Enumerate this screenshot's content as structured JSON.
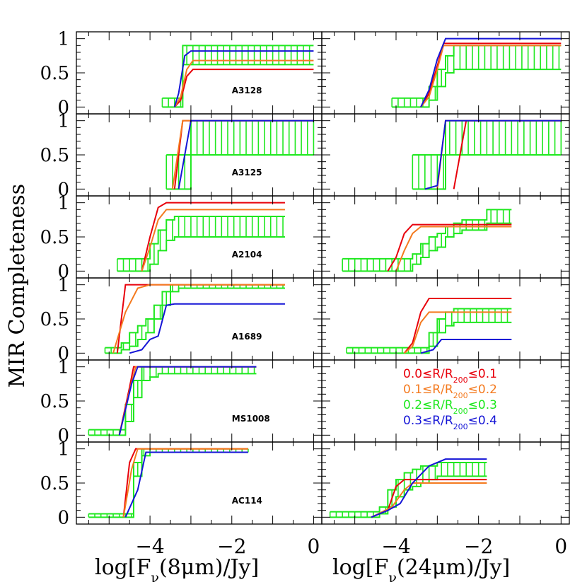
{
  "chart_data": {
    "type": "line",
    "ylabel": "MIR Completeness",
    "xlabel_left": {
      "main": "log[F",
      "sub": "ν",
      "rest": "(8μm)/Jy]"
    },
    "xlabel_right": {
      "main": "log[F",
      "sub": "ν",
      "rest": "(24μm)/Jy]"
    },
    "xlim": [
      -5.8,
      0.2
    ],
    "ylim": [
      -0.1,
      1.1
    ],
    "xticks": [
      "−4",
      "−2",
      "0"
    ],
    "xtick_values": [
      -4,
      -2,
      0
    ],
    "yticks": [
      "0",
      "0.5",
      "1"
    ],
    "ytick_values": [
      0,
      0.5,
      1
    ],
    "legend": {
      "position": "inside row 5 right panel",
      "entries": [
        {
          "name_pre": "0.0≤R/R",
          "name_sub": "200",
          "name_post": "≤0.1",
          "color": "#e8000b"
        },
        {
          "name_pre": "0.1≤R/R",
          "name_sub": "200",
          "name_post": "≤0.2",
          "color": "#f47a1f"
        },
        {
          "name_pre": "0.2≤R/R",
          "name_sub": "200",
          "name_post": "≤0.3",
          "color": "#1fe81f"
        },
        {
          "name_pre": "0.3≤R/R",
          "name_sub": "200",
          "name_post": "≤0.4",
          "color": "#1515d6"
        }
      ]
    },
    "colors": {
      "red": "#e8000b",
      "orange": "#f47a1f",
      "green": "#1fe81f",
      "blue": "#1515d6"
    },
    "rows": [
      {
        "cluster": "A3128",
        "left": {
          "green_band": {
            "x": [
              -3.7,
              -3.4,
              -3.2,
              -3.0,
              0.0
            ],
            "lo": [
              0.0,
              0.0,
              0.62,
              0.62,
              0.62
            ],
            "hi": [
              0.13,
              0.13,
              0.9,
              0.9,
              0.9
            ]
          },
          "red": [
            [
              -3.4,
              0
            ],
            [
              -3.25,
              0.1
            ],
            [
              -3.1,
              0.45
            ],
            [
              -2.95,
              0.55
            ],
            [
              0.0,
              0.55
            ]
          ],
          "orange": [
            [
              -3.4,
              0
            ],
            [
              -3.25,
              0.15
            ],
            [
              -3.1,
              0.55
            ],
            [
              -2.95,
              0.68
            ],
            [
              0.0,
              0.68
            ]
          ],
          "blue": [
            [
              -3.4,
              0
            ],
            [
              -3.3,
              0.2
            ],
            [
              -3.15,
              0.75
            ],
            [
              -3.0,
              0.82
            ],
            [
              0.0,
              0.82
            ]
          ]
        },
        "right": {
          "green_band": {
            "x": [
              -4.1,
              -3.4,
              -3.2,
              -3.0,
              -2.8,
              -2.6,
              -2.4,
              -2.2,
              0.0
            ],
            "lo": [
              0.0,
              0.0,
              0.1,
              0.3,
              0.5,
              0.55,
              0.55,
              0.55,
              0.55
            ],
            "hi": [
              0.13,
              0.13,
              0.3,
              0.55,
              0.75,
              0.9,
              0.9,
              0.9,
              0.9
            ]
          },
          "red": [
            [
              -3.4,
              0
            ],
            [
              -3.2,
              0.2
            ],
            [
              -3.0,
              0.6
            ],
            [
              -2.85,
              0.93
            ],
            [
              0.0,
              0.93
            ]
          ],
          "orange": [
            [
              -3.4,
              0
            ],
            [
              -3.2,
              0.15
            ],
            [
              -3.0,
              0.55
            ],
            [
              -2.85,
              0.9
            ],
            [
              0.0,
              0.9
            ]
          ],
          "blue": [
            [
              -3.4,
              0
            ],
            [
              -3.2,
              0.25
            ],
            [
              -3.0,
              0.7
            ],
            [
              -2.8,
              1.0
            ],
            [
              0.0,
              1.0
            ]
          ]
        }
      },
      {
        "cluster": "A3125",
        "left": {
          "green_band": {
            "x": [
              -3.6,
              -3.2,
              -3.0,
              0.0
            ],
            "lo": [
              0.0,
              0.0,
              0.5,
              0.5
            ],
            "hi": [
              0.5,
              0.5,
              1.0,
              1.0
            ]
          },
          "red": [
            [
              -3.4,
              0
            ],
            [
              -3.2,
              1.0
            ],
            [
              0.0,
              1.0
            ]
          ],
          "orange": [
            [
              -3.45,
              0
            ],
            [
              -3.2,
              1.0
            ],
            [
              0.0,
              1.0
            ]
          ],
          "blue": [
            [
              -3.3,
              0
            ],
            [
              -3.0,
              1.0
            ],
            [
              0.0,
              1.0
            ]
          ]
        },
        "right": {
          "green_band": {
            "x": [
              -3.6,
              -3.0,
              -2.8,
              -2.6,
              0.0
            ],
            "lo": [
              0.0,
              0.0,
              0.5,
              0.5,
              0.5
            ],
            "hi": [
              0.5,
              0.5,
              1.0,
              1.0,
              1.0
            ]
          },
          "red": [
            [
              -2.6,
              0
            ],
            [
              -2.3,
              1.0
            ],
            [
              0.0,
              1.0
            ]
          ],
          "orange": [
            [
              -3.0,
              0
            ],
            [
              -2.8,
              1.0
            ],
            [
              0.0,
              1.0
            ]
          ],
          "blue": [
            [
              -3.3,
              0
            ],
            [
              -3.0,
              0.05
            ],
            [
              -2.8,
              1.0
            ],
            [
              0.0,
              1.0
            ]
          ]
        }
      },
      {
        "cluster": "A2104",
        "left": {
          "green_band": {
            "x": [
              -4.8,
              -4.2,
              -4.0,
              -3.8,
              -3.6,
              -3.4,
              -0.7
            ],
            "lo": [
              0.0,
              0.0,
              0.1,
              0.3,
              0.45,
              0.5,
              0.5
            ],
            "hi": [
              0.18,
              0.18,
              0.4,
              0.6,
              0.75,
              0.8,
              0.8
            ]
          },
          "red": [
            [
              -4.2,
              0
            ],
            [
              -4.0,
              0.5
            ],
            [
              -3.8,
              0.93
            ],
            [
              -3.6,
              1.0
            ],
            [
              -0.7,
              1.0
            ]
          ],
          "orange": [
            [
              -4.2,
              0
            ],
            [
              -4.0,
              0.35
            ],
            [
              -3.8,
              0.75
            ],
            [
              -3.6,
              0.9
            ],
            [
              -0.7,
              0.9
            ]
          ],
          "blue": []
        },
        "right": {
          "green_band": {
            "x": [
              -5.3,
              -3.7,
              -3.6,
              -3.4,
              -3.2,
              -3.0,
              -2.8,
              -2.6,
              -2.4,
              -2.2,
              -2.0,
              -1.8,
              -1.6,
              -1.2
            ],
            "lo": [
              0.0,
              0.0,
              0.1,
              0.2,
              0.3,
              0.35,
              0.5,
              0.55,
              0.6,
              0.6,
              0.6,
              0.7,
              0.7,
              0.7
            ],
            "hi": [
              0.18,
              0.18,
              0.25,
              0.4,
              0.5,
              0.55,
              0.65,
              0.7,
              0.75,
              0.75,
              0.75,
              0.9,
              0.9,
              0.9
            ]
          },
          "red": [
            [
              -4.2,
              0
            ],
            [
              -4.0,
              0.2
            ],
            [
              -3.8,
              0.55
            ],
            [
              -3.6,
              0.68
            ],
            [
              -1.2,
              0.68
            ]
          ],
          "orange": [
            [
              -4.0,
              0
            ],
            [
              -3.8,
              0.3
            ],
            [
              -3.6,
              0.55
            ],
            [
              -3.4,
              0.65
            ],
            [
              -1.2,
              0.65
            ]
          ],
          "blue": []
        }
      },
      {
        "cluster": "A1689",
        "left": {
          "green_band": {
            "x": [
              -5.1,
              -4.9,
              -4.7,
              -4.5,
              -4.3,
              -4.1,
              -3.9,
              -3.7,
              -3.5,
              -3.3,
              -0.7
            ],
            "lo": [
              0.0,
              0.0,
              0.05,
              0.1,
              0.2,
              0.3,
              0.5,
              0.7,
              0.9,
              0.95,
              0.95
            ],
            "hi": [
              0.08,
              0.08,
              0.15,
              0.3,
              0.4,
              0.5,
              0.7,
              0.9,
              1.0,
              1.0,
              1.0
            ]
          },
          "red": [
            [
              -4.8,
              0
            ],
            [
              -4.6,
              1.0
            ],
            [
              -0.7,
              1.0
            ]
          ],
          "orange": [
            [
              -4.9,
              0
            ],
            [
              -4.6,
              0.6
            ],
            [
              -4.3,
              0.95
            ],
            [
              -4.0,
              1.0
            ],
            [
              -0.7,
              1.0
            ]
          ],
          "blue": [
            [
              -4.5,
              0
            ],
            [
              -4.2,
              0.05
            ],
            [
              -4.0,
              0.2
            ],
            [
              -3.8,
              0.25
            ],
            [
              -3.6,
              0.7
            ],
            [
              -3.4,
              0.72
            ],
            [
              -0.7,
              0.72
            ]
          ]
        },
        "right": {
          "green_band": {
            "x": [
              -5.2,
              -3.4,
              -3.2,
              -3.0,
              -2.8,
              -2.6,
              -2.4,
              -1.2
            ],
            "lo": [
              0.0,
              0.0,
              0.1,
              0.3,
              0.4,
              0.45,
              0.45,
              0.45
            ],
            "hi": [
              0.08,
              0.08,
              0.3,
              0.5,
              0.6,
              0.65,
              0.65,
              0.65
            ]
          },
          "red": [
            [
              -3.8,
              0
            ],
            [
              -3.6,
              0.15
            ],
            [
              -3.4,
              0.6
            ],
            [
              -3.2,
              0.8
            ],
            [
              -1.2,
              0.8
            ]
          ],
          "orange": [
            [
              -3.8,
              0
            ],
            [
              -3.6,
              0.1
            ],
            [
              -3.4,
              0.45
            ],
            [
              -3.2,
              0.6
            ],
            [
              -1.2,
              0.6
            ]
          ],
          "blue": [
            [
              -3.4,
              0
            ],
            [
              -3.1,
              0.05
            ],
            [
              -2.9,
              0.2
            ],
            [
              -1.2,
              0.2
            ]
          ]
        }
      },
      {
        "cluster": "MS1008",
        "left": {
          "green_band": {
            "x": [
              -5.5,
              -4.8,
              -4.6,
              -4.4,
              -4.2,
              -4.0,
              -3.8,
              -1.4
            ],
            "lo": [
              0.0,
              0.0,
              0.2,
              0.55,
              0.8,
              0.85,
              0.9,
              0.9
            ],
            "hi": [
              0.08,
              0.08,
              0.45,
              0.8,
              1.0,
              1.0,
              1.0,
              1.0
            ]
          },
          "red": [
            [
              -4.75,
              0
            ],
            [
              -4.5,
              0.7
            ],
            [
              -4.4,
              1.0
            ],
            [
              -1.4,
              1.0
            ]
          ],
          "orange": [
            [
              -4.75,
              0
            ],
            [
              -4.5,
              0.65
            ],
            [
              -4.35,
              1.0
            ],
            [
              -1.4,
              1.0
            ]
          ],
          "blue": [
            [
              -4.75,
              0
            ],
            [
              -4.45,
              0.75
            ],
            [
              -4.3,
              1.0
            ],
            [
              -1.4,
              1.0
            ]
          ]
        },
        "right": null
      },
      {
        "cluster": "AC114",
        "left": {
          "green_band": {
            "x": [
              -5.5,
              -4.6,
              -4.4,
              -4.2,
              -4.0,
              -1.6
            ],
            "lo": [
              0.0,
              0.0,
              0.6,
              0.9,
              0.95,
              0.95
            ],
            "hi": [
              0.05,
              0.05,
              0.8,
              1.0,
              1.0,
              1.0
            ]
          },
          "red": [
            [
              -4.65,
              0
            ],
            [
              -4.5,
              0.8
            ],
            [
              -4.35,
              1.0
            ],
            [
              -1.6,
              1.0
            ]
          ],
          "orange": [
            [
              -4.65,
              0
            ],
            [
              -4.45,
              0.7
            ],
            [
              -4.3,
              1.0
            ],
            [
              -1.6,
              1.0
            ]
          ],
          "blue": [
            [
              -4.6,
              0
            ],
            [
              -4.3,
              0.4
            ],
            [
              -4.1,
              0.95
            ],
            [
              -1.6,
              0.95
            ]
          ]
        },
        "right": {
          "green_band": {
            "x": [
              -5.6,
              -4.6,
              -4.4,
              -4.2,
              -4.0,
              -3.8,
              -3.6,
              -3.4,
              -3.2,
              -3.0,
              -2.8,
              -2.6,
              -1.8
            ],
            "lo": [
              0.0,
              0.0,
              0.05,
              0.15,
              0.3,
              0.4,
              0.45,
              0.5,
              0.55,
              0.6,
              0.6,
              0.6,
              0.6
            ],
            "hi": [
              0.08,
              0.08,
              0.15,
              0.4,
              0.55,
              0.65,
              0.7,
              0.75,
              0.75,
              0.8,
              0.8,
              0.8,
              0.8
            ]
          },
          "red": [
            [
              -4.6,
              0
            ],
            [
              -4.2,
              0.1
            ],
            [
              -4.0,
              0.45
            ],
            [
              -3.8,
              0.55
            ],
            [
              -1.8,
              0.55
            ]
          ],
          "orange": [
            [
              -4.6,
              0
            ],
            [
              -4.1,
              0.15
            ],
            [
              -3.8,
              0.4
            ],
            [
              -3.6,
              0.5
            ],
            [
              -1.8,
              0.5
            ]
          ],
          "blue": [
            [
              -4.6,
              0
            ],
            [
              -4.2,
              0.1
            ],
            [
              -3.9,
              0.2
            ],
            [
              -3.6,
              0.5
            ],
            [
              -3.2,
              0.75
            ],
            [
              -2.8,
              0.85
            ],
            [
              -1.8,
              0.85
            ]
          ]
        }
      }
    ]
  }
}
